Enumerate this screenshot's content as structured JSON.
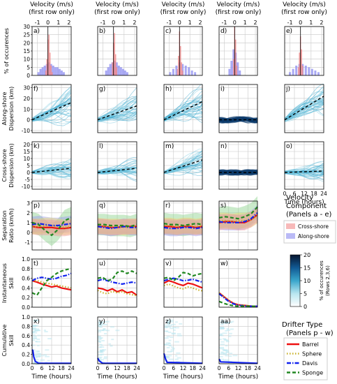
{
  "figure": {
    "top_axis_label": "Velocity (m/s)",
    "top_axis_sub": "(first row only)",
    "top_ticks": [
      "-1",
      "0",
      "1",
      "2"
    ],
    "x_axis_label": "Time (hours)",
    "x_ticks": [
      "0",
      "6",
      "12",
      "18",
      "24"
    ],
    "panel_letters": [
      [
        "a)",
        "b)",
        "c)",
        "d)",
        "e)"
      ],
      [
        "f)",
        "g)",
        "h)",
        "i)",
        "j)"
      ],
      [
        "k)",
        "l)",
        "m)",
        "n)",
        "o)"
      ],
      [
        "p)",
        "q)",
        "r)",
        "s)"
      ],
      [
        "t)",
        "u)",
        "v)",
        "w)"
      ],
      [
        "x)",
        "y)",
        "z)",
        "aa)"
      ]
    ],
    "row_labels": [
      [
        "% of occurences"
      ],
      [
        "Along-shore",
        "Dispersion (km)"
      ],
      [
        "Cross-shore",
        "Dispersion (km)"
      ],
      [
        "Separation",
        "Ratio (km/h)"
      ],
      [
        "Instantaneous",
        "Skill"
      ],
      [
        "Cumulative",
        "Skill"
      ]
    ],
    "row_ticks": [
      [
        "0",
        "5",
        "10",
        "15",
        "20",
        "25",
        "30"
      ],
      [
        "-10",
        "0",
        "10",
        "20",
        "30"
      ],
      [
        "-10",
        "-5",
        "0",
        "5",
        "10",
        "15",
        "20"
      ],
      [
        "-1",
        "0",
        "1",
        "2",
        "3"
      ],
      [
        "0.0",
        "0.2",
        "0.4",
        "0.6",
        "0.8",
        "1.0"
      ],
      [
        "0.0",
        "0.2",
        "0.4",
        "0.6",
        "0.8",
        "1.0"
      ]
    ]
  },
  "legends": {
    "velocity_title": "Velocity",
    "velocity_sub": "Component",
    "velocity_sub2": "(Panels a - e)",
    "velocity_items": [
      {
        "label": "Cross-shore",
        "color": "#f28b8b"
      },
      {
        "label": "Along-shore",
        "color": "#8c8cf0"
      }
    ],
    "colorbar_ticks": [
      "0",
      "5",
      "10",
      "15",
      "20"
    ],
    "colorbar_label": "% of occurences",
    "colorbar_sub": "(Rows 2,3,6)",
    "drifter_title": "Drifter Type",
    "drifter_sub": "(Panels p - w)",
    "drifter_items": [
      {
        "label": "Barrel",
        "color": "#ee1111",
        "style": "solid"
      },
      {
        "label": "Sphere",
        "color": "#c9b12a",
        "style": "dotted"
      },
      {
        "label": "Davis",
        "color": "#1122ee",
        "style": "dashdot"
      },
      {
        "label": "Sponge",
        "color": "#228822",
        "style": "dashed"
      }
    ]
  },
  "chart_data": {
    "type": "multi-panel",
    "columns": 5,
    "rows": 6,
    "histograms": {
      "xlim": [
        -1.5,
        2.2
      ],
      "ylim": [
        0,
        30
      ],
      "bin_width": 0.1,
      "panels": [
        {
          "panel": "a)",
          "cross": [
            {
              "x": -0.2,
              "y": 3
            },
            {
              "x": -0.1,
              "y": 10
            },
            {
              "x": 0.0,
              "y": 22
            },
            {
              "x": 0.1,
              "y": 25
            },
            {
              "x": 0.2,
              "y": 14
            },
            {
              "x": 0.3,
              "y": 6
            },
            {
              "x": 0.4,
              "y": 2
            }
          ],
          "along": [
            {
              "x": -0.9,
              "y": 2
            },
            {
              "x": -0.7,
              "y": 4
            },
            {
              "x": -0.5,
              "y": 5
            },
            {
              "x": -0.3,
              "y": 6
            },
            {
              "x": -0.1,
              "y": 7
            },
            {
              "x": 0.1,
              "y": 8
            },
            {
              "x": 0.3,
              "y": 7
            },
            {
              "x": 0.5,
              "y": 6
            },
            {
              "x": 0.7,
              "y": 5
            },
            {
              "x": 0.9,
              "y": 5
            },
            {
              "x": 1.1,
              "y": 4
            },
            {
              "x": 1.3,
              "y": 3
            },
            {
              "x": 1.5,
              "y": 2
            }
          ]
        },
        {
          "panel": "b)",
          "cross": [
            {
              "x": -0.1,
              "y": 8
            },
            {
              "x": 0.0,
              "y": 20
            },
            {
              "x": 0.1,
              "y": 26
            },
            {
              "x": 0.2,
              "y": 13
            },
            {
              "x": 0.3,
              "y": 5
            }
          ],
          "along": [
            {
              "x": -0.7,
              "y": 3
            },
            {
              "x": -0.5,
              "y": 5
            },
            {
              "x": -0.3,
              "y": 7
            },
            {
              "x": -0.1,
              "y": 8
            },
            {
              "x": 0.1,
              "y": 9
            },
            {
              "x": 0.3,
              "y": 8
            },
            {
              "x": 0.5,
              "y": 6
            },
            {
              "x": 0.7,
              "y": 5
            },
            {
              "x": 0.9,
              "y": 4
            },
            {
              "x": 1.1,
              "y": 3
            },
            {
              "x": 1.3,
              "y": 2
            }
          ]
        },
        {
          "panel": "c)",
          "cross": [
            {
              "x": -0.2,
              "y": 4
            },
            {
              "x": -0.1,
              "y": 12
            },
            {
              "x": 0.0,
              "y": 27
            },
            {
              "x": 0.1,
              "y": 18
            },
            {
              "x": 0.2,
              "y": 8
            },
            {
              "x": 0.3,
              "y": 3
            }
          ],
          "along": [
            {
              "x": -0.9,
              "y": 2
            },
            {
              "x": -0.6,
              "y": 4
            },
            {
              "x": -0.3,
              "y": 6
            },
            {
              "x": 0.0,
              "y": 8
            },
            {
              "x": 0.3,
              "y": 7
            },
            {
              "x": 0.6,
              "y": 6
            },
            {
              "x": 0.9,
              "y": 5
            },
            {
              "x": 1.2,
              "y": 3
            },
            {
              "x": 1.5,
              "y": 2
            }
          ]
        },
        {
          "panel": "d)",
          "cross": [
            {
              "x": -0.1,
              "y": 10
            },
            {
              "x": 0.0,
              "y": 30
            },
            {
              "x": 0.1,
              "y": 22
            },
            {
              "x": 0.2,
              "y": 6
            }
          ],
          "along": [
            {
              "x": -0.5,
              "y": 4
            },
            {
              "x": -0.3,
              "y": 9
            },
            {
              "x": -0.1,
              "y": 16
            },
            {
              "x": 0.1,
              "y": 14
            },
            {
              "x": 0.3,
              "y": 8
            },
            {
              "x": 0.5,
              "y": 3
            }
          ]
        },
        {
          "panel": "e)",
          "cross": [
            {
              "x": -0.2,
              "y": 5
            },
            {
              "x": -0.1,
              "y": 14
            },
            {
              "x": 0.0,
              "y": 24
            },
            {
              "x": 0.1,
              "y": 16
            },
            {
              "x": 0.2,
              "y": 6
            }
          ],
          "along": [
            {
              "x": -1.0,
              "y": 2
            },
            {
              "x": -0.7,
              "y": 4
            },
            {
              "x": -0.4,
              "y": 6
            },
            {
              "x": -0.1,
              "y": 7
            },
            {
              "x": 0.2,
              "y": 7
            },
            {
              "x": 0.5,
              "y": 6
            },
            {
              "x": 0.8,
              "y": 5
            },
            {
              "x": 1.1,
              "y": 4
            },
            {
              "x": 1.4,
              "y": 3
            },
            {
              "x": 1.7,
              "y": 2
            }
          ]
        }
      ]
    },
    "along_shore_dispersion": {
      "xlim": [
        0,
        24
      ],
      "ylim": [
        -12,
        33
      ],
      "mean_trend_end_km": [
        16,
        13,
        17,
        0,
        22
      ]
    },
    "cross_shore_dispersion": {
      "xlim": [
        0,
        24
      ],
      "ylim": [
        -12,
        22
      ],
      "mean_trend_end_km": [
        3,
        3,
        9,
        0,
        1
      ]
    },
    "separation_ratio": {
      "xlim": [
        0,
        24
      ],
      "ylim": [
        -1.8,
        3.2
      ],
      "x": [
        0,
        4,
        8,
        12,
        16,
        20,
        24
      ],
      "panels": [
        {
          "panel": "p)",
          "Barrel": [
            0.6,
            0.5,
            0.5,
            0.5,
            0.4,
            0.4,
            0.5
          ],
          "Sphere": [
            0.6,
            0.6,
            0.7,
            0.7,
            0.6,
            0.5,
            0.6
          ],
          "Davis": [
            0.8,
            0.9,
            0.8,
            0.7,
            0.7,
            0.8,
            0.9
          ],
          "Sponge": [
            1.0,
            0.8,
            0.2,
            -0.3,
            0.3,
            1.2,
            1.5
          ]
        },
        {
          "panel": "q)",
          "Barrel": [
            0.6,
            0.6,
            0.5,
            0.5,
            0.6,
            0.6,
            0.6
          ],
          "Sphere": [
            0.7,
            0.6,
            0.6,
            0.6,
            0.5,
            0.6,
            0.6
          ],
          "Davis": [
            0.6,
            0.5,
            0.4,
            0.5,
            0.6,
            0.5,
            0.5
          ],
          "Sponge": [
            0.8,
            0.8,
            0.7,
            0.7,
            0.7,
            0.6,
            0.8
          ]
        },
        {
          "panel": "r)",
          "Barrel": [
            0.6,
            0.6,
            0.5,
            0.6,
            0.6,
            0.5,
            0.6
          ],
          "Sphere": [
            0.7,
            0.7,
            0.6,
            0.7,
            0.7,
            0.6,
            0.7
          ],
          "Davis": [
            0.5,
            0.4,
            0.4,
            0.5,
            0.5,
            0.4,
            0.5
          ],
          "Sponge": [
            0.9,
            0.8,
            0.8,
            0.7,
            0.8,
            0.9,
            0.8
          ]
        },
        {
          "panel": "s)",
          "Barrel": [
            1.0,
            1.1,
            1.1,
            1.0,
            1.0,
            1.3,
            1.8
          ],
          "Sphere": [
            1.2,
            1.2,
            1.1,
            1.2,
            1.2,
            1.3,
            1.7
          ],
          "Davis": [
            1.1,
            1.0,
            1.0,
            1.0,
            1.1,
            1.4,
            2.0
          ],
          "Sponge": [
            1.5,
            1.6,
            1.5,
            1.4,
            1.6,
            1.9,
            2.6
          ]
        }
      ]
    },
    "instantaneous_skill": {
      "xlim": [
        0,
        24
      ],
      "ylim": [
        0,
        1
      ],
      "x": [
        0,
        3,
        6,
        9,
        12,
        15,
        18,
        21,
        24
      ],
      "panels": [
        {
          "panel": "t)",
          "Barrel": [
            0.55,
            0.52,
            0.48,
            0.45,
            0.42,
            0.44,
            0.4,
            0.38,
            0.36
          ],
          "Sphere": [
            0.55,
            0.55,
            0.52,
            0.5,
            0.48,
            0.46,
            0.44,
            0.42,
            0.4
          ],
          "Davis": [
            0.55,
            0.6,
            0.62,
            0.6,
            0.58,
            0.6,
            0.64,
            0.66,
            0.7
          ],
          "Sponge": [
            0.3,
            0.25,
            0.4,
            0.55,
            0.62,
            0.7,
            0.75,
            0.78,
            0.8
          ]
        },
        {
          "panel": "u)",
          "Barrel": [
            0.4,
            0.38,
            0.34,
            0.38,
            0.32,
            0.36,
            0.3,
            0.32,
            0.25
          ],
          "Sphere": [
            0.35,
            0.3,
            0.28,
            0.33,
            0.3,
            0.32,
            0.28,
            0.26,
            0.24
          ],
          "Davis": [
            0.55,
            0.58,
            0.55,
            0.52,
            0.5,
            0.48,
            0.5,
            0.52,
            0.5
          ],
          "Sponge": [
            0.6,
            0.62,
            0.55,
            0.58,
            0.72,
            0.75,
            0.7,
            0.75,
            0.7
          ]
        },
        {
          "panel": "v)",
          "Barrel": [
            0.5,
            0.55,
            0.52,
            0.48,
            0.45,
            0.5,
            0.48,
            0.44,
            0.4
          ],
          "Sphere": [
            0.45,
            0.48,
            0.44,
            0.4,
            0.38,
            0.42,
            0.4,
            0.36,
            0.34
          ],
          "Davis": [
            0.55,
            0.58,
            0.6,
            0.58,
            0.55,
            0.56,
            0.58,
            0.55,
            0.52
          ],
          "Sponge": [
            0.6,
            0.62,
            0.55,
            0.62,
            0.72,
            0.7,
            0.65,
            0.68,
            0.7
          ]
        },
        {
          "panel": "w)",
          "Barrel": [
            0.3,
            0.22,
            0.14,
            0.08,
            0.05,
            0.04,
            0.03,
            0.02,
            0.02
          ],
          "Sphere": [
            0.3,
            0.22,
            0.14,
            0.08,
            0.05,
            0.04,
            0.03,
            0.02,
            0.02
          ],
          "Davis": [
            0.28,
            0.2,
            0.12,
            0.07,
            0.04,
            0.03,
            0.02,
            0.02,
            0.02
          ],
          "Sponge": [
            0.12,
            0.08,
            0.05,
            0.03,
            0.02,
            0.02,
            0.02,
            0.02,
            0.02
          ]
        }
      ]
    },
    "cumulative_skill": {
      "xlim": [
        0,
        24
      ],
      "ylim": [
        0,
        1
      ],
      "panels": [
        {
          "panel": "x)",
          "Davis": [
            {
              "x": 0,
              "y": 0.3
            },
            {
              "x": 0.5,
              "y": 0.28
            },
            {
              "x": 1,
              "y": 0.15
            },
            {
              "x": 2,
              "y": 0.05
            },
            {
              "x": 4,
              "y": 0.01
            }
          ]
        },
        {
          "panel": "y)",
          "Davis": [
            {
              "x": 0,
              "y": 0.12
            },
            {
              "x": 1,
              "y": 0.06
            },
            {
              "x": 3,
              "y": 0.01
            }
          ]
        },
        {
          "panel": "z)",
          "Davis": [
            {
              "x": 0,
              "y": 0.22
            },
            {
              "x": 1,
              "y": 0.1
            },
            {
              "x": 2,
              "y": 0.03
            }
          ]
        },
        {
          "panel": "aa)",
          "Davis": [
            {
              "x": 0,
              "y": 0.1
            },
            {
              "x": 1,
              "y": 0.04
            }
          ]
        }
      ]
    }
  }
}
